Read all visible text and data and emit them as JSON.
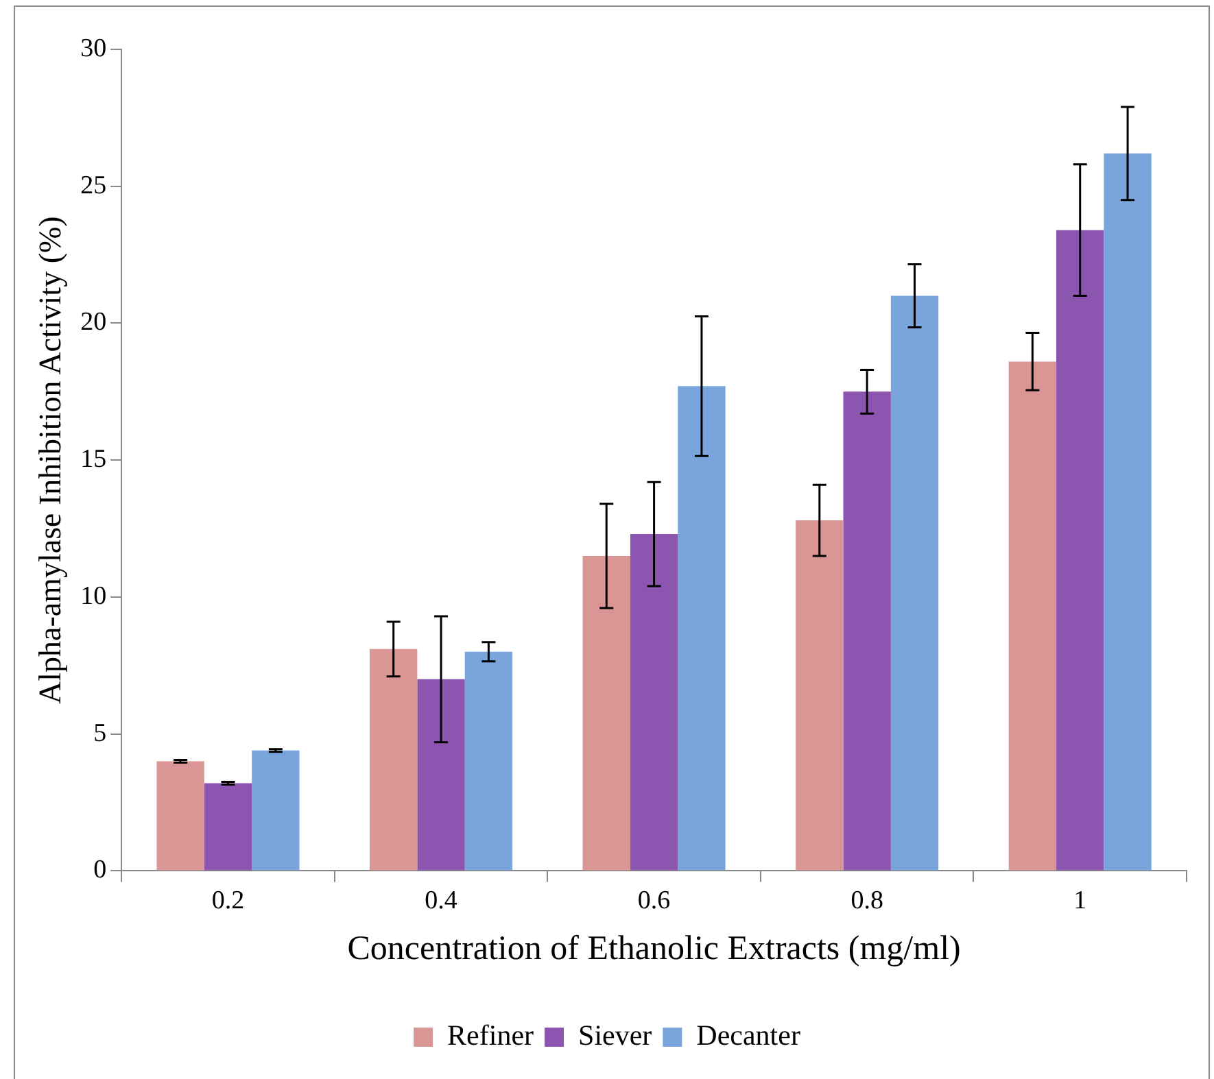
{
  "chart_data": {
    "type": "bar",
    "xlabel": "Concentration of Ethanolic Extracts (mg/ml)",
    "ylabel": "Alpha-amylase Inhibition Activity (%)",
    "categories": [
      "0.2",
      "0.4",
      "0.6",
      "0.8",
      "1"
    ],
    "series": [
      {
        "name": "Refiner",
        "color": "#d99694",
        "values": [
          4.0,
          8.1,
          11.5,
          12.8,
          18.6
        ],
        "errors": [
          0.05,
          1.0,
          1.9,
          1.3,
          1.05
        ]
      },
      {
        "name": "Siever",
        "color": "#8c56b0",
        "values": [
          3.2,
          7.0,
          12.3,
          17.5,
          23.4
        ],
        "errors": [
          0.05,
          2.3,
          1.9,
          0.8,
          2.4
        ]
      },
      {
        "name": "Decanter",
        "color": "#7aa5dc",
        "values": [
          4.4,
          8.0,
          17.7,
          21.0,
          26.2
        ],
        "errors": [
          0.05,
          0.35,
          2.55,
          1.15,
          1.7
        ]
      }
    ],
    "ylim": [
      0,
      30
    ],
    "yticks": [
      0,
      5,
      10,
      15,
      20,
      25,
      30
    ],
    "grid": false,
    "legend": "bottom"
  }
}
